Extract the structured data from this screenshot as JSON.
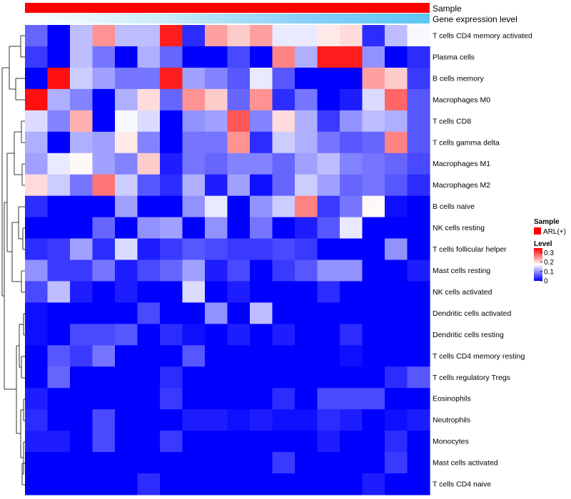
{
  "chart_data": {
    "type": "heatmap",
    "title": "",
    "annotation_tracks": [
      {
        "name": "Sample",
        "label": "Sample",
        "colors": [
          "#ff0000"
        ]
      },
      {
        "name": "Gene expression level",
        "label": "Gene expression level",
        "gradient": [
          "#ffffff",
          "#c8ecf8",
          "#87cefa",
          "#5bc6f3"
        ]
      }
    ],
    "rows": [
      "T cells CD4 memory activated",
      "Plasma cells",
      "B cells memory",
      "Macrophages M0",
      "T cells CD8",
      "T cells gamma delta",
      "Macrophages M1",
      "Macrophages M2",
      "B cells naive",
      "NK cells resting",
      "T cells follicular helper",
      "Mast cells resting",
      "NK cells activated",
      "Dendritic cells activated",
      "Dendritic cells resting",
      "T cells CD4 memory resting",
      "T cells regulatory  Tregs",
      "Eosinophils",
      "Neutrophils",
      "Monocytes",
      "Mast cells activated",
      "T cells CD4 naive"
    ],
    "n_columns": 18,
    "values": [
      [
        0.07,
        0.0,
        0.13,
        0.25,
        0.13,
        0.13,
        0.33,
        0.03,
        0.24,
        0.21,
        0.24,
        0.16,
        0.16,
        0.19,
        0.2,
        0.03,
        0.13,
        0.17
      ],
      [
        0.04,
        0.0,
        0.13,
        0.08,
        0.0,
        0.12,
        0.07,
        0.0,
        0.0,
        0.05,
        0.0,
        0.26,
        0.12,
        0.33,
        0.33,
        0.1,
        0.0,
        0.03
      ],
      [
        0.0,
        0.34,
        0.14,
        0.11,
        0.08,
        0.08,
        0.33,
        0.11,
        0.09,
        0.06,
        0.16,
        0.06,
        0.0,
        0.0,
        0.0,
        0.24,
        0.21,
        0.04
      ],
      [
        0.34,
        0.12,
        0.09,
        0.0,
        0.12,
        0.2,
        0.07,
        0.25,
        0.21,
        0.07,
        0.25,
        0.03,
        0.08,
        0.0,
        0.02,
        0.15,
        0.28,
        0.06
      ],
      [
        0.15,
        0.09,
        0.23,
        0.0,
        0.17,
        0.15,
        0.0,
        0.1,
        0.11,
        0.29,
        0.09,
        0.2,
        0.12,
        0.04,
        0.1,
        0.13,
        0.12,
        0.06
      ],
      [
        0.12,
        0.0,
        0.12,
        0.11,
        0.19,
        0.09,
        0.0,
        0.08,
        0.08,
        0.25,
        0.03,
        0.14,
        0.12,
        0.08,
        0.06,
        0.07,
        0.26,
        0.06
      ],
      [
        0.11,
        0.16,
        0.18,
        0.11,
        0.09,
        0.21,
        0.02,
        0.08,
        0.07,
        0.09,
        0.09,
        0.07,
        0.11,
        0.13,
        0.09,
        0.08,
        0.07,
        0.05
      ],
      [
        0.2,
        0.14,
        0.08,
        0.27,
        0.14,
        0.06,
        0.03,
        0.12,
        0.02,
        0.11,
        0.01,
        0.07,
        0.14,
        0.11,
        0.07,
        0.08,
        0.06,
        0.03
      ],
      [
        0.03,
        0.0,
        0.0,
        0.0,
        0.11,
        0.0,
        0.0,
        0.1,
        0.16,
        0.0,
        0.1,
        0.14,
        0.26,
        0.04,
        0.08,
        0.18,
        0.01,
        0.0
      ],
      [
        0.0,
        0.0,
        0.0,
        0.07,
        0.0,
        0.1,
        0.11,
        0.0,
        0.1,
        0.0,
        0.08,
        0.0,
        0.02,
        0.06,
        0.16,
        0.0,
        0.0,
        0.0
      ],
      [
        0.03,
        0.04,
        0.11,
        0.03,
        0.15,
        0.02,
        0.04,
        0.06,
        0.05,
        0.04,
        0.04,
        0.05,
        0.04,
        0.0,
        0.0,
        0.0,
        0.1,
        0.0
      ],
      [
        0.1,
        0.04,
        0.04,
        0.08,
        0.02,
        0.05,
        0.07,
        0.11,
        0.02,
        0.05,
        0.0,
        0.04,
        0.06,
        0.1,
        0.1,
        0.0,
        0.0,
        0.02
      ],
      [
        0.05,
        0.13,
        0.02,
        0.0,
        0.02,
        0.0,
        0.0,
        0.15,
        0.0,
        0.02,
        0.0,
        0.0,
        0.0,
        0.03,
        0.0,
        0.0,
        0.0,
        0.0
      ],
      [
        0.01,
        0.0,
        0.0,
        0.0,
        0.0,
        0.05,
        0.0,
        0.0,
        0.1,
        0.0,
        0.13,
        0.0,
        0.0,
        0.0,
        0.0,
        0.0,
        0.0,
        0.0
      ],
      [
        0.01,
        0.0,
        0.05,
        0.05,
        0.06,
        0.0,
        0.03,
        0.01,
        0.0,
        0.02,
        0.0,
        0.02,
        0.0,
        0.0,
        0.03,
        0.0,
        0.0,
        0.0
      ],
      [
        0.0,
        0.06,
        0.04,
        0.08,
        0.0,
        0.0,
        0.0,
        0.06,
        0.0,
        0.0,
        0.0,
        0.0,
        0.0,
        0.0,
        0.01,
        0.0,
        0.0,
        0.0
      ],
      [
        0.0,
        0.07,
        0.0,
        0.0,
        0.0,
        0.0,
        0.03,
        0.0,
        0.0,
        0.0,
        0.0,
        0.0,
        0.0,
        0.0,
        0.0,
        0.0,
        0.03,
        0.06
      ],
      [
        0.02,
        0.0,
        0.0,
        0.0,
        0.0,
        0.0,
        0.04,
        0.0,
        0.0,
        0.0,
        0.0,
        0.03,
        0.0,
        0.05,
        0.05,
        0.05,
        0.0,
        0.0
      ],
      [
        0.03,
        0.0,
        0.0,
        0.05,
        0.0,
        0.0,
        0.0,
        0.02,
        0.02,
        0.01,
        0.02,
        0.01,
        0.01,
        0.03,
        0.02,
        0.0,
        0.01,
        0.02
      ],
      [
        0.02,
        0.02,
        0.0,
        0.05,
        0.0,
        0.0,
        0.04,
        0.0,
        0.0,
        0.0,
        0.0,
        0.0,
        0.0,
        0.02,
        0.0,
        0.0,
        0.03,
        0.0
      ],
      [
        0.0,
        0.0,
        0.0,
        0.0,
        0.0,
        0.0,
        0.0,
        0.0,
        0.0,
        0.0,
        0.0,
        0.04,
        0.0,
        0.0,
        0.0,
        0.0,
        0.04,
        0.0
      ],
      [
        0.0,
        0.0,
        0.0,
        0.0,
        0.0,
        0.03,
        0.0,
        0.0,
        0.0,
        0.0,
        0.0,
        0.0,
        0.0,
        0.0,
        0.0,
        0.02,
        0.0,
        0.0
      ]
    ],
    "color_scale": {
      "min": 0,
      "max": 0.35,
      "low_color": "#0000ff",
      "mid_color": "#ffffff",
      "high_color": "#ff0000",
      "mid_value": 0.175
    },
    "legend": {
      "placement": "right",
      "sample_title": "Sample",
      "sample_entry": "ARL(+)",
      "sample_color": "#ff0000",
      "level_title": "Level",
      "level_ticks": [
        {
          "value": 0.3,
          "label": "0.3"
        },
        {
          "value": 0.2,
          "label": "0.2"
        },
        {
          "value": 0.1,
          "label": "0.1"
        },
        {
          "value": 0,
          "label": "0"
        }
      ]
    },
    "dendrogram": "row-clustering (left)"
  }
}
